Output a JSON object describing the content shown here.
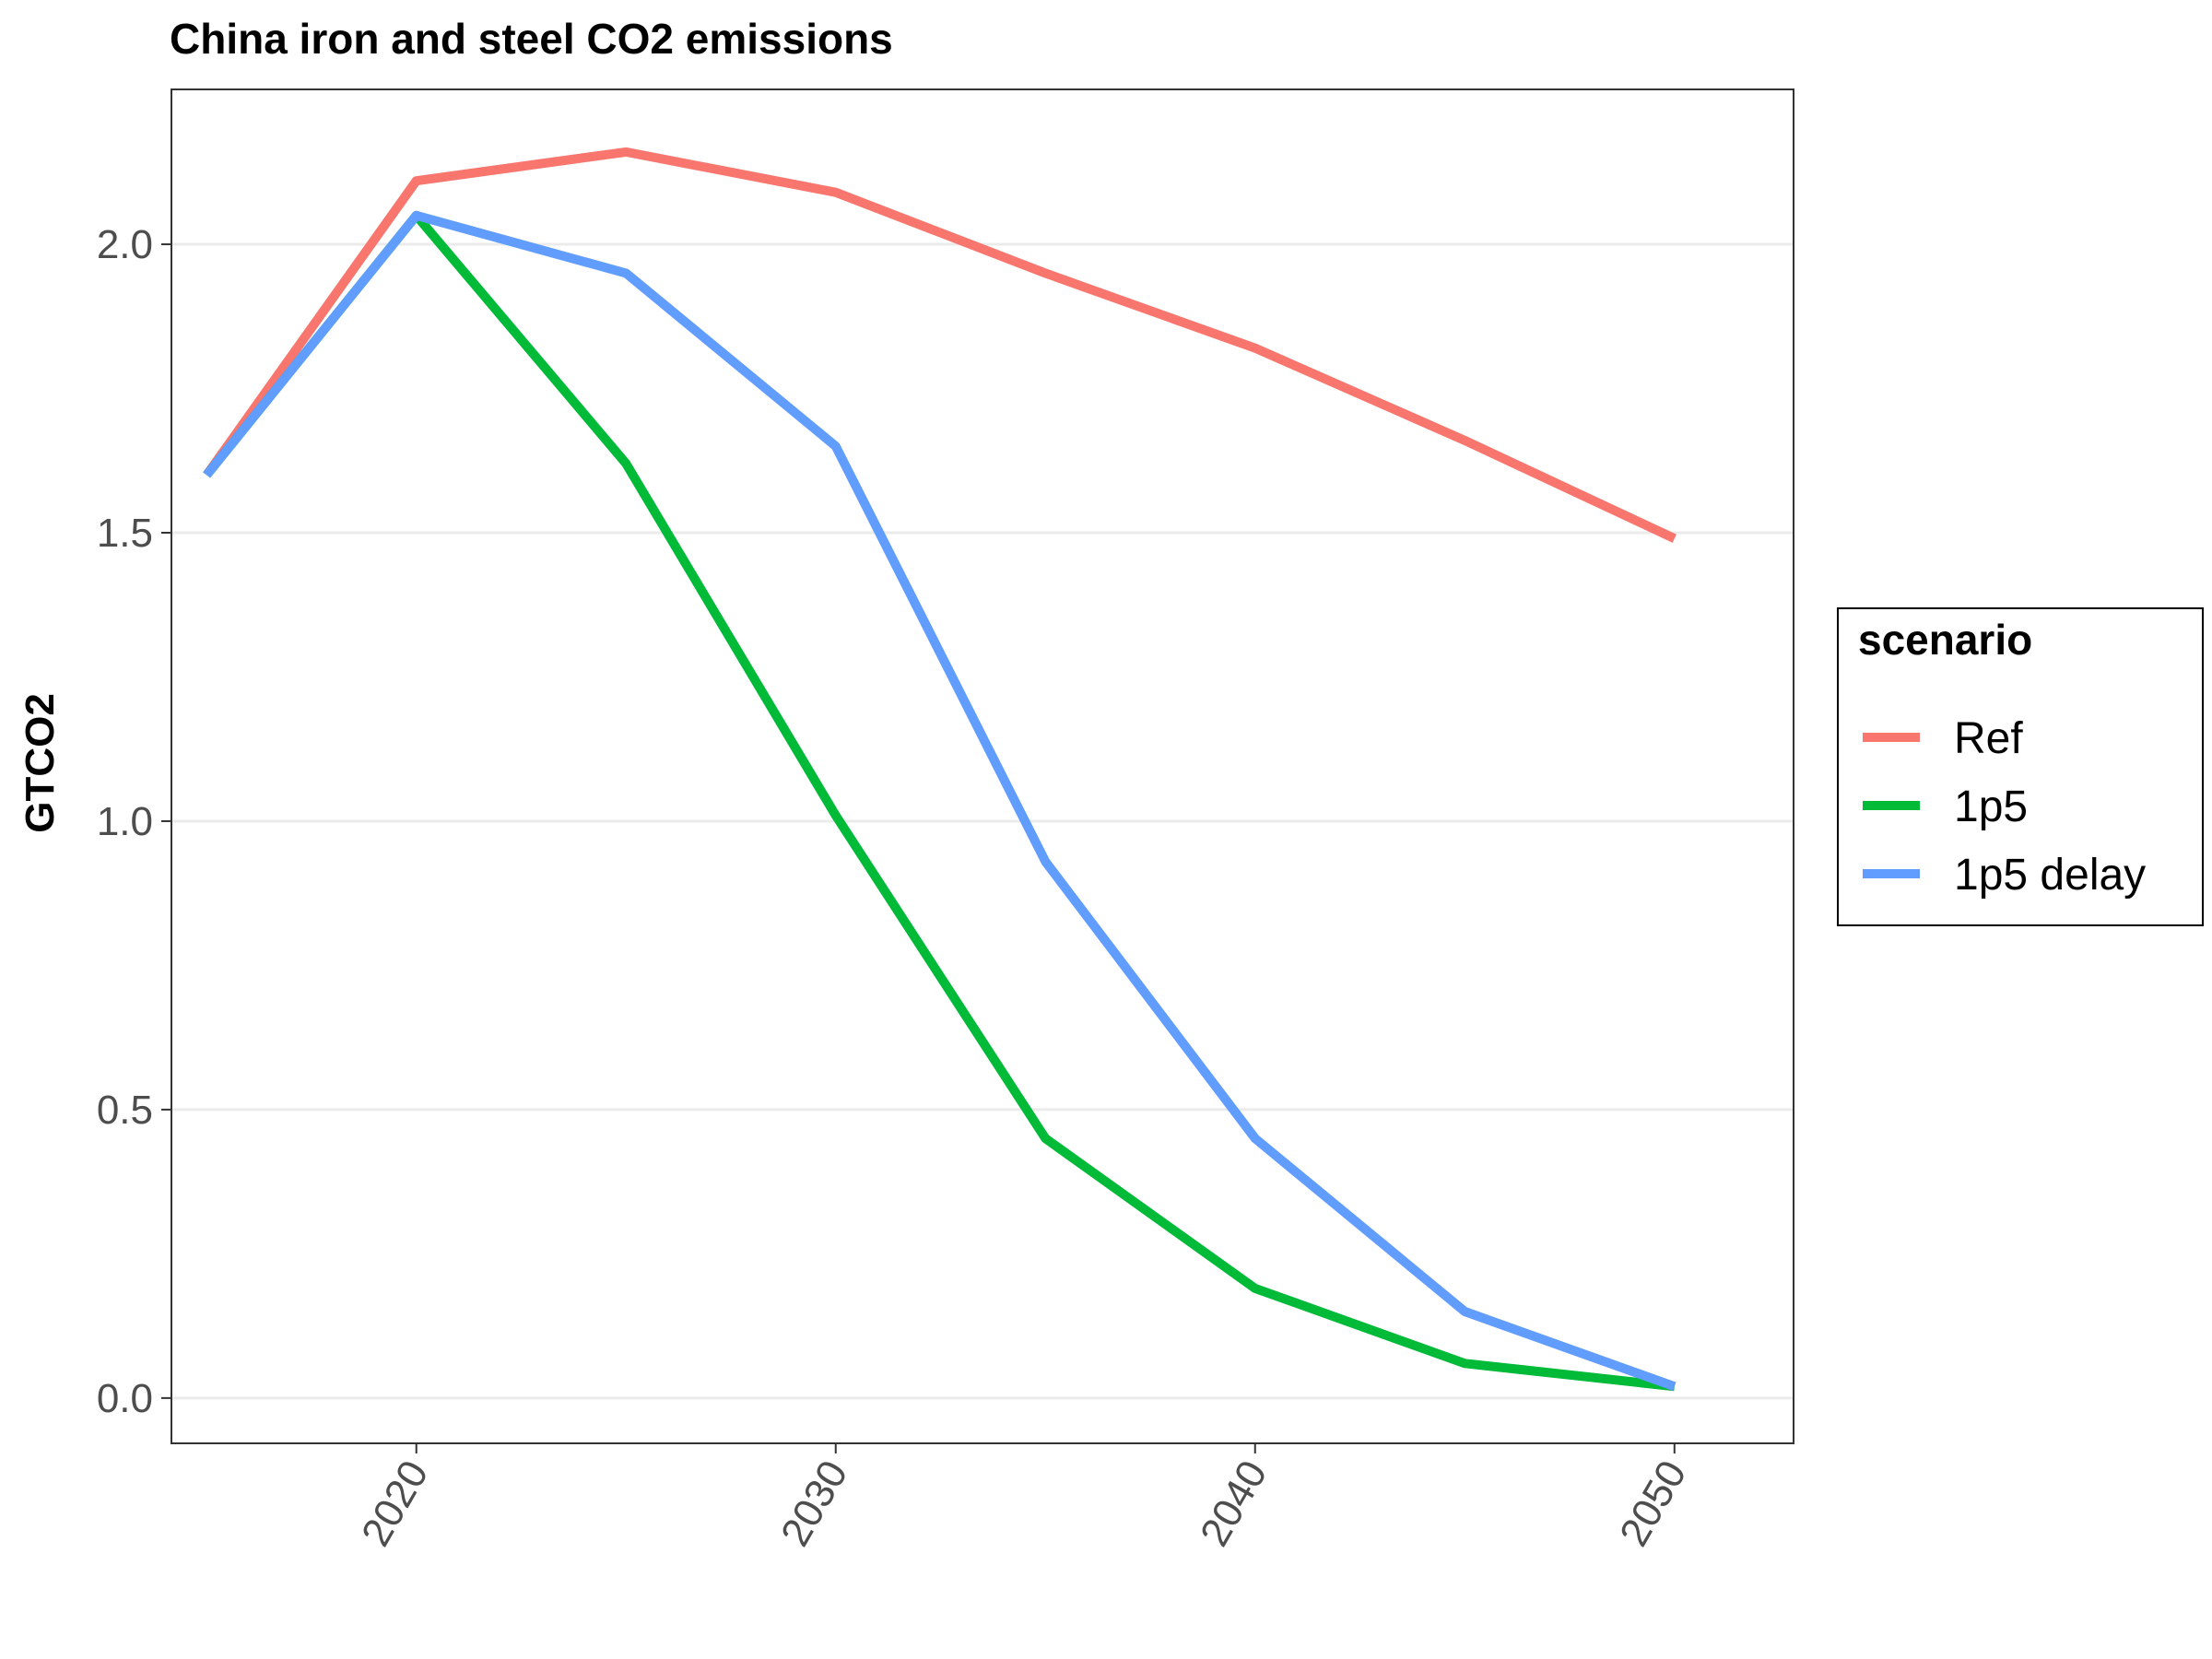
{
  "chart_data": {
    "type": "line",
    "title": "China iron and steel CO2 emissions",
    "xlabel": "",
    "ylabel": "GTCO2",
    "x": [
      2015,
      2020,
      2025,
      2030,
      2035,
      2040,
      2045,
      2050
    ],
    "series": [
      {
        "name": "Ref",
        "color": "#f8766d",
        "values": [
          1.6,
          2.11,
          2.16,
          2.09,
          1.95,
          1.82,
          1.66,
          1.49
        ]
      },
      {
        "name": "1p5",
        "color": "#00ba38",
        "values": [
          1.6,
          2.05,
          1.62,
          1.01,
          0.45,
          0.19,
          0.06,
          0.02
        ]
      },
      {
        "name": "1p5 delay",
        "color": "#619cff",
        "values": [
          1.6,
          2.05,
          1.95,
          1.65,
          0.93,
          0.45,
          0.15,
          0.02
        ]
      }
    ],
    "xlim": [
      2014.16,
      2052.84
    ],
    "ylim": [
      -0.0785,
      2.2685
    ],
    "y_ticks": [
      0.0,
      0.5,
      1.0,
      1.5,
      2.0
    ],
    "y_tick_labels": [
      "0.0",
      "0.5",
      "1.0",
      "1.5",
      "2.0"
    ],
    "x_ticks": [
      2020,
      2030,
      2040,
      2050
    ],
    "x_tick_labels": [
      "2020",
      "2030",
      "2040",
      "2050"
    ],
    "grid": "horizontal major",
    "legend": {
      "title": "scenario",
      "position": "right"
    }
  }
}
